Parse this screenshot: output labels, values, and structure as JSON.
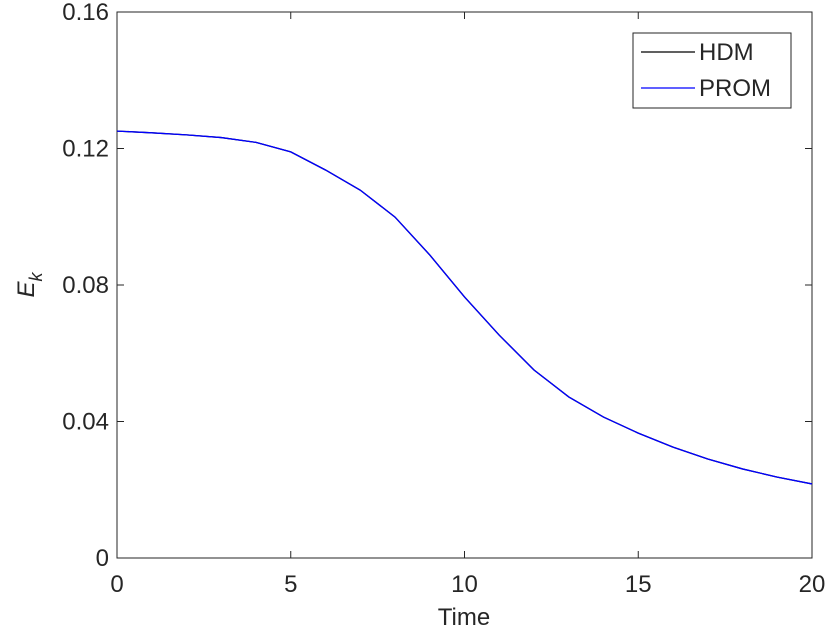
{
  "chart_data": {
    "type": "line",
    "xlabel": "Time",
    "ylabel": "E",
    "ylabel_subscript": "k",
    "x": [
      0,
      1,
      2,
      3,
      4,
      5,
      6,
      7,
      8,
      9,
      10,
      11,
      12,
      13,
      14,
      15,
      16,
      17,
      18,
      19,
      20
    ],
    "series": [
      {
        "name": "HDM",
        "color": "#000000",
        "values": [
          0.1251,
          0.1246,
          0.124,
          0.1232,
          0.1218,
          0.119,
          0.1137,
          0.1078,
          0.0999,
          0.0888,
          0.0765,
          0.0653,
          0.0551,
          0.0472,
          0.0413,
          0.0366,
          0.0325,
          0.029,
          0.0261,
          0.0237,
          0.0217
        ]
      },
      {
        "name": "PROM",
        "color": "#0000ff",
        "values": [
          0.1251,
          0.1246,
          0.124,
          0.1232,
          0.1218,
          0.119,
          0.1137,
          0.1078,
          0.0999,
          0.0888,
          0.0765,
          0.0653,
          0.0551,
          0.0472,
          0.0413,
          0.0366,
          0.0325,
          0.029,
          0.0261,
          0.0237,
          0.0217
        ]
      }
    ],
    "xlim": [
      0,
      20
    ],
    "xticks": [
      0,
      5,
      10,
      15,
      20
    ],
    "ylim": [
      0,
      0.16
    ],
    "yticks": [
      0,
      0.04,
      0.08,
      0.12,
      0.16
    ],
    "legend": "top-right"
  }
}
